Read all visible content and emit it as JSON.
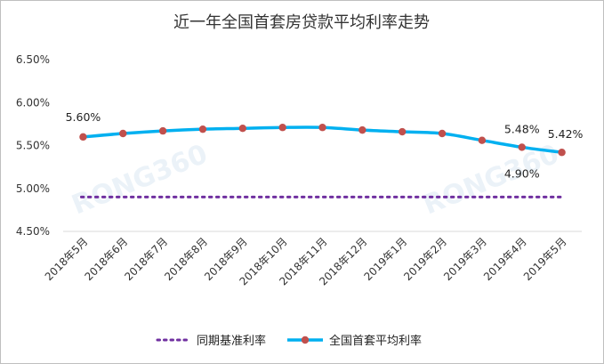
{
  "chart_data": {
    "type": "line",
    "title": "近一年全国首套房贷款平均利率走势",
    "categories": [
      "2018年5月",
      "2018年6月",
      "2018年7月",
      "2018年8月",
      "2018年9月",
      "2018年10月",
      "2018年11月",
      "2018年12月",
      "2019年1月",
      "2019年2月",
      "2019年3月",
      "2019年4月",
      "2019年5月"
    ],
    "yticks": [
      "4.50%",
      "5.00%",
      "5.50%",
      "6.00%",
      "6.50%"
    ],
    "ylim": [
      4.5,
      6.5
    ],
    "series": [
      {
        "name": "同期基准利率",
        "color": "#7030a0",
        "style": "dotted",
        "values": [
          4.9,
          4.9,
          4.9,
          4.9,
          4.9,
          4.9,
          4.9,
          4.9,
          4.9,
          4.9,
          4.9,
          4.9,
          4.9
        ]
      },
      {
        "name": "全国首套平均利率",
        "color": "#00b0f0",
        "marker_color": "#c0504d",
        "style": "solid",
        "values": [
          5.6,
          5.64,
          5.67,
          5.69,
          5.7,
          5.71,
          5.71,
          5.68,
          5.66,
          5.64,
          5.56,
          5.48,
          5.42
        ]
      }
    ],
    "data_labels": [
      {
        "series": 1,
        "index": 0,
        "text": "5.60%"
      },
      {
        "series": 1,
        "index": 11,
        "text": "5.48%"
      },
      {
        "series": 1,
        "index": 12,
        "text": "5.42%"
      },
      {
        "series": 0,
        "index": 11,
        "text": "4.90%"
      }
    ],
    "watermark": "RONG360",
    "legend_position": "bottom"
  }
}
